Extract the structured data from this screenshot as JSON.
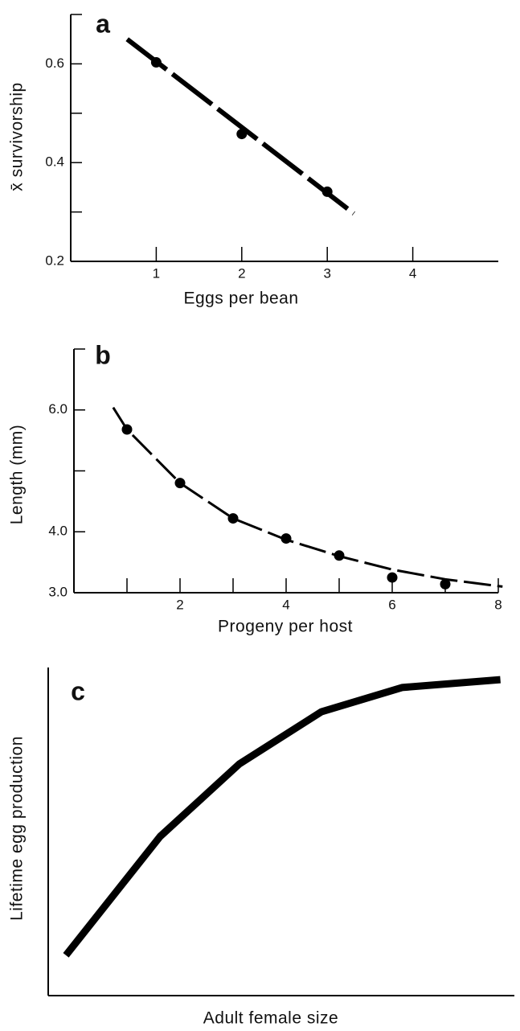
{
  "chart_data": [
    {
      "type": "scatter",
      "panel": "a",
      "xlabel": "Eggs per bean",
      "ylabel": "x̄ survivorship",
      "xlim": [
        0,
        5
      ],
      "xticks": [
        1,
        2,
        3,
        4
      ],
      "ylim": [
        0.2,
        0.7
      ],
      "yticks": [
        0.2,
        0.4,
        0.6
      ],
      "yminor_ticks": [
        0.3,
        0.5,
        0.7
      ],
      "points": {
        "x": [
          1,
          2,
          3
        ],
        "values": [
          0.603,
          0.458,
          0.341
        ]
      },
      "curve": {
        "x": [
          0.66,
          3.31
        ],
        "values": [
          0.65,
          0.297
        ]
      },
      "color": "#000000"
    },
    {
      "type": "scatter",
      "panel": "b",
      "xlabel": "Progeny per host",
      "ylabel": "Length (mm)",
      "xlim": [
        0,
        8
      ],
      "xticks": [
        2,
        4,
        6,
        8
      ],
      "xminor_ticks": [
        1,
        3,
        5,
        7
      ],
      "ylim": [
        3,
        7
      ],
      "yticks": [
        {
          "value": 3,
          "label": "3.0"
        },
        {
          "value": 4,
          "label": "4.0"
        },
        {
          "value": 6,
          "label": "6.0"
        }
      ],
      "yminor_ticks": [
        5,
        7
      ],
      "points": {
        "x": [
          1,
          2,
          3,
          4,
          5,
          6,
          7
        ],
        "values": [
          5.68,
          4.8,
          4.22,
          3.89,
          3.61,
          3.25,
          3.14
        ]
      },
      "curve": {
        "x": [
          0.74,
          1,
          2,
          3,
          4,
          5,
          6,
          7,
          8.08
        ],
        "values": [
          6.04,
          5.68,
          4.8,
          4.22,
          3.87,
          3.6,
          3.38,
          3.22,
          3.1
        ]
      },
      "color": "#000000"
    },
    {
      "type": "line",
      "panel": "c",
      "xlabel": "Adult female size",
      "ylabel": "Lifetime egg production",
      "xlim": [
        0,
        100
      ],
      "ylim": [
        0,
        100
      ],
      "x": [
        3.8,
        24,
        41,
        58.6,
        75.9,
        97
      ],
      "values": [
        12.3,
        48.5,
        70.6,
        86.5,
        93.9,
        96.3
      ],
      "color": "#000000"
    }
  ]
}
